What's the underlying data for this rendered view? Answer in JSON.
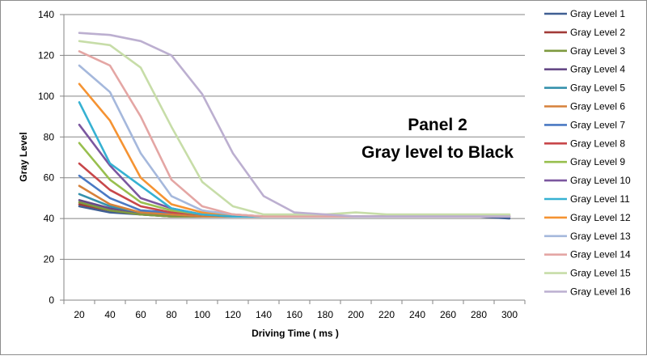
{
  "chart_data": {
    "type": "line",
    "title_line1": "Panel 2",
    "title_line2": "Gray level to Black",
    "xlabel": "Driving Time ( ms )",
    "ylabel": "Gray Level",
    "x": [
      20,
      40,
      60,
      80,
      100,
      120,
      140,
      160,
      180,
      200,
      220,
      240,
      260,
      280,
      300
    ],
    "ylim": [
      0,
      140
    ],
    "yticks": [
      0,
      20,
      40,
      60,
      80,
      100,
      120,
      140
    ],
    "grid": true,
    "legend_position": "right",
    "series": [
      {
        "name": "Gray Level 1",
        "color": "#3F5F93",
        "values": [
          46,
          43,
          42,
          41,
          41,
          41,
          41,
          41,
          41,
          41,
          41,
          41,
          41,
          41,
          40
        ]
      },
      {
        "name": "Gray Level 2",
        "color": "#A23B38",
        "values": [
          47,
          44,
          42,
          41,
          41,
          41,
          41,
          41,
          41,
          41,
          41,
          41,
          41,
          41,
          41
        ]
      },
      {
        "name": "Gray Level 3",
        "color": "#7E9A3F",
        "values": [
          48,
          44,
          42,
          41,
          41,
          41,
          41,
          41,
          41,
          41,
          41,
          41,
          41,
          41,
          41
        ]
      },
      {
        "name": "Gray Level 4",
        "color": "#664A86",
        "values": [
          49,
          45,
          43,
          42,
          41,
          41,
          41,
          41,
          41,
          41,
          41,
          41,
          41,
          41,
          41
        ]
      },
      {
        "name": "Gray Level 5",
        "color": "#3591AC",
        "values": [
          52,
          46,
          43,
          42,
          41,
          41,
          41,
          41,
          41,
          41,
          41,
          41,
          41,
          41,
          41
        ]
      },
      {
        "name": "Gray Level 6",
        "color": "#D6813A",
        "values": [
          56,
          47,
          43,
          42,
          41,
          41,
          41,
          41,
          41,
          41,
          41,
          41,
          41,
          41,
          41
        ]
      },
      {
        "name": "Gray Level 7",
        "color": "#4A79C3",
        "values": [
          61,
          50,
          44,
          43,
          42,
          41,
          41,
          41,
          41,
          41,
          41,
          41,
          41,
          41,
          41
        ]
      },
      {
        "name": "Gray Level 8",
        "color": "#C8474A",
        "values": [
          67,
          54,
          46,
          43,
          42,
          41,
          41,
          41,
          41,
          41,
          41,
          41,
          41,
          41,
          41
        ]
      },
      {
        "name": "Gray Level 9",
        "color": "#98BF4E",
        "values": [
          77,
          59,
          48,
          44,
          42,
          41,
          41,
          41,
          41,
          41,
          41,
          41,
          41,
          41,
          41
        ]
      },
      {
        "name": "Gray Level 10",
        "color": "#7B579F",
        "values": [
          86,
          66,
          50,
          45,
          42,
          41,
          41,
          41,
          41,
          41,
          41,
          41,
          41,
          41,
          41
        ]
      },
      {
        "name": "Gray Level 11",
        "color": "#36B1D2",
        "values": [
          97,
          67,
          56,
          45,
          42,
          41,
          41,
          41,
          41,
          41,
          41,
          41,
          41,
          41,
          41
        ]
      },
      {
        "name": "Gray Level 12",
        "color": "#F59332",
        "values": [
          106,
          88,
          60,
          47,
          43,
          42,
          41,
          41,
          41,
          41,
          41,
          41,
          41,
          41,
          41
        ]
      },
      {
        "name": "Gray Level 13",
        "color": "#A5B8DC",
        "values": [
          115,
          102,
          72,
          51,
          44,
          42,
          41,
          41,
          41,
          41,
          41,
          41,
          41,
          41,
          41
        ]
      },
      {
        "name": "Gray Level 14",
        "color": "#E4A6A4",
        "values": [
          122,
          115,
          90,
          59,
          46,
          42,
          41,
          41,
          41,
          41,
          41,
          41,
          41,
          41,
          41
        ]
      },
      {
        "name": "Gray Level 15",
        "color": "#C7DDA8",
        "values": [
          127,
          125,
          114,
          85,
          58,
          46,
          42,
          42,
          42,
          43,
          42,
          42,
          42,
          42,
          42
        ]
      },
      {
        "name": "Gray Level 16",
        "color": "#BCAFD0",
        "values": [
          131,
          130,
          127,
          120,
          101,
          72,
          51,
          43,
          42,
          41,
          41,
          41,
          41,
          41,
          41
        ]
      }
    ]
  }
}
